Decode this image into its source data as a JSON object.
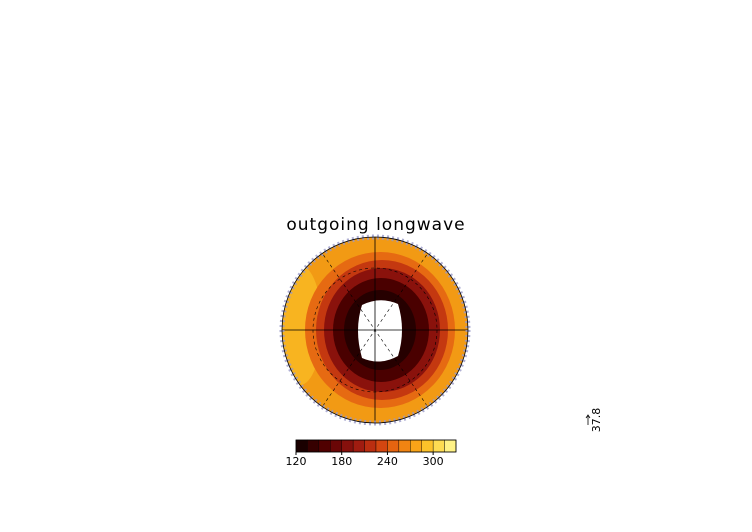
{
  "map": {
    "title": "outgoing longwave",
    "colorbar": {
      "range": [
        120,
        330
      ],
      "ticks": [
        120,
        180,
        240,
        300
      ],
      "colors": [
        "#1a0000",
        "#360000",
        "#500000",
        "#6a0606",
        "#86100c",
        "#a01c10",
        "#bb2e10",
        "#d44610",
        "#e66410",
        "#f08412",
        "#f8a418",
        "#fcc22a",
        "#fedc52",
        "#fff286"
      ]
    },
    "reference_vector": 37.8
  }
}
